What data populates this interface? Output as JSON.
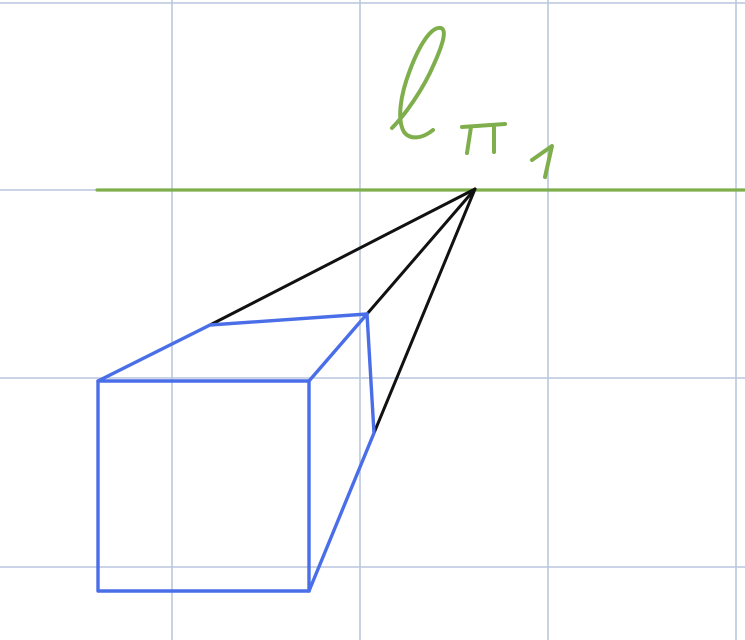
{
  "diagram": {
    "horizon_label": "ℓπ1",
    "colors": {
      "grid": "#b9c6de",
      "horizon": "#7fae4c",
      "vanishing_lines": "#111111",
      "cube": "#4a6ee8",
      "background": "#ffffff"
    }
  }
}
